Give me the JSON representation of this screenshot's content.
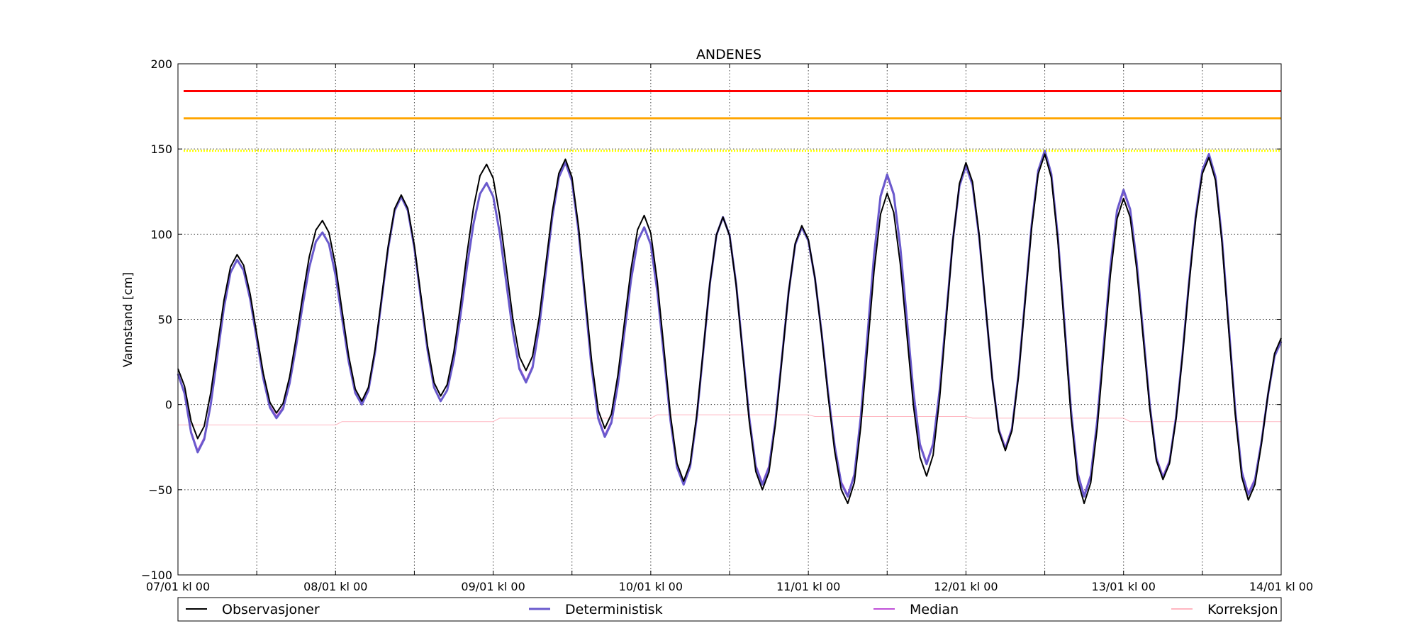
{
  "chart_data": {
    "type": "line",
    "title": "ANDENES",
    "ylabel": "Vannstand [cm]",
    "xlabel": "",
    "ylim": [
      -100,
      200
    ],
    "yticks": [
      -100,
      -50,
      0,
      50,
      100,
      150,
      200
    ],
    "xlim_hours": [
      0,
      168
    ],
    "x_unit": "hours from 07/01 kl 00",
    "x_major_ticks": [
      {
        "hour": 0,
        "label": "07/01 kl 00"
      },
      {
        "hour": 24,
        "label": "08/01 kl 00"
      },
      {
        "hour": 48,
        "label": "09/01 kl 00"
      },
      {
        "hour": 72,
        "label": "10/01 kl 00"
      },
      {
        "hour": 96,
        "label": "11/01 kl 00"
      },
      {
        "hour": 120,
        "label": "12/01 kl 00"
      },
      {
        "hour": 144,
        "label": "13/01 kl 00"
      },
      {
        "hour": 168,
        "label": "14/01 kl 00"
      }
    ],
    "x_minor_grid_hours": [
      12,
      36,
      60,
      84,
      108,
      132,
      156
    ],
    "grid": true,
    "threshold_lines": [
      {
        "value": 184,
        "color": "#ff0000",
        "style": "solid"
      },
      {
        "value": 168,
        "color": "#ffa500",
        "style": "solid"
      },
      {
        "value": 149,
        "color": "#ffff00",
        "style": "dotted"
      }
    ],
    "extrema_hours": [
      0,
      3,
      9,
      15,
      22,
      28,
      34,
      40,
      47,
      53,
      59,
      65,
      71,
      77,
      83,
      89,
      95,
      102,
      108,
      114,
      120,
      126,
      132,
      138,
      144,
      150,
      157,
      163,
      168
    ],
    "series": [
      {
        "name": "Observasjoner",
        "color": "#000000",
        "width": 2,
        "values": [
          21,
          -20,
          88,
          -5,
          108,
          2,
          123,
          5,
          141,
          20,
          144,
          -14,
          111,
          -45,
          110,
          -50,
          105,
          -58,
          124,
          -42,
          142,
          -27,
          147,
          -58,
          121,
          -44,
          145,
          -56,
          39
        ]
      },
      {
        "name": "Deterministisk",
        "color": "#6a5acd",
        "width": 3,
        "values": [
          18,
          -28,
          85,
          -8,
          101,
          0,
          122,
          2,
          130,
          13,
          142,
          -19,
          104,
          -47,
          110,
          -47,
          104,
          -54,
          135,
          -35,
          140,
          -26,
          149,
          -54,
          126,
          -43,
          147,
          -53,
          37
        ]
      },
      {
        "name": "Median",
        "color": "#c050d8",
        "width": 2,
        "values": [
          18,
          -27,
          85,
          -7,
          101,
          0,
          122,
          2,
          130,
          14,
          142,
          -18,
          104,
          -46,
          110,
          -46,
          104,
          -53,
          134,
          -34,
          140,
          -25,
          148,
          -53,
          125,
          -42,
          146,
          -52,
          37
        ]
      },
      {
        "name": "Korreksjon",
        "color": "#ffb6c1",
        "width": 1,
        "step_points": [
          [
            0,
            -12
          ],
          [
            24,
            -12
          ],
          [
            25,
            -10
          ],
          [
            48,
            -10
          ],
          [
            49,
            -8
          ],
          [
            72,
            -8
          ],
          [
            73,
            -6
          ],
          [
            96,
            -6
          ],
          [
            97,
            -7
          ],
          [
            120,
            -7
          ],
          [
            121,
            -8
          ],
          [
            144,
            -8
          ],
          [
            145,
            -10
          ],
          [
            168,
            -10
          ]
        ]
      }
    ],
    "legend_position": "bottom"
  }
}
